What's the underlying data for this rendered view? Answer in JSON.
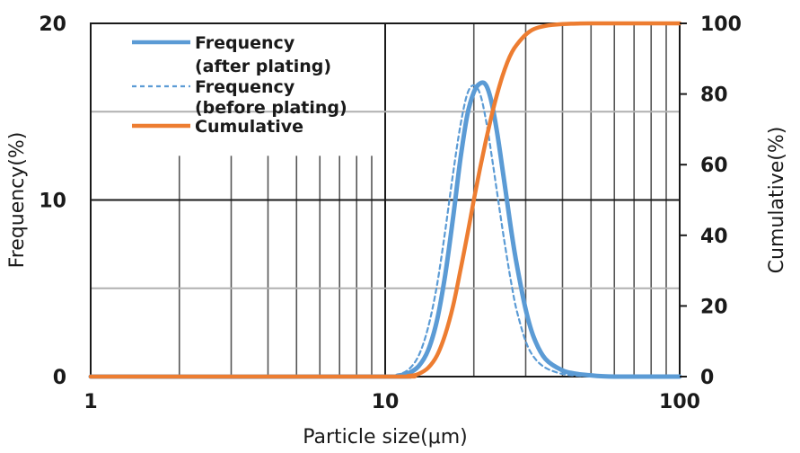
{
  "chart_data": {
    "type": "line",
    "xlabel": "Particle size(μm)",
    "ylabel_left": "Frequency(%)",
    "ylabel_right": "Cumulative(%)",
    "x_scale": "log",
    "xlim": [
      1,
      100
    ],
    "ylim_left": [
      0,
      20
    ],
    "ylim_right": [
      0,
      100
    ],
    "x_ticks": [
      {
        "value": 1,
        "label": "1"
      },
      {
        "value": 10,
        "label": "10"
      },
      {
        "value": 100,
        "label": "100"
      }
    ],
    "y_left_ticks": [
      {
        "value": 0,
        "label": "0"
      },
      {
        "value": 10,
        "label": "10"
      },
      {
        "value": 20,
        "label": "20"
      }
    ],
    "y_right_ticks": [
      {
        "value": 0,
        "label": "0"
      },
      {
        "value": 20,
        "label": "20"
      },
      {
        "value": 40,
        "label": "40"
      },
      {
        "value": 60,
        "label": "60"
      },
      {
        "value": 80,
        "label": "80"
      },
      {
        "value": 100,
        "label": "100"
      }
    ],
    "grid": true,
    "legend_position": "top-left",
    "series": [
      {
        "name_lines": [
          "Frequency",
          "(after plating)"
        ],
        "axis": "left",
        "style": "solid",
        "color": "#5b9bd5",
        "x": [
          1,
          10,
          11,
          12,
          13,
          14,
          15,
          16,
          17,
          18,
          19,
          20,
          21,
          22,
          23,
          24,
          25,
          26,
          27,
          28,
          30,
          32,
          35,
          40,
          45,
          50,
          55,
          60,
          70,
          80,
          100
        ],
        "y": [
          0,
          0,
          0.05,
          0.2,
          0.6,
          1.5,
          3.2,
          5.8,
          9.0,
          12.3,
          14.8,
          16.1,
          16.6,
          16.5,
          15.5,
          13.8,
          11.8,
          9.8,
          7.9,
          6.3,
          3.8,
          2.2,
          1.0,
          0.35,
          0.15,
          0.07,
          0.02,
          0,
          0,
          0,
          0
        ]
      },
      {
        "name_lines": [
          "Frequency",
          "(before plating)"
        ],
        "axis": "left",
        "style": "dashed",
        "color": "#5b9bd5",
        "x": [
          1,
          10,
          11,
          12,
          13,
          14,
          15,
          16,
          17,
          18,
          19,
          20,
          21,
          22,
          23,
          24,
          25,
          26,
          27,
          28,
          30,
          32,
          35,
          40,
          45,
          50,
          60,
          70,
          100
        ],
        "y": [
          0,
          0,
          0.1,
          0.4,
          1.2,
          2.8,
          5.2,
          8.3,
          11.5,
          14.2,
          16.0,
          16.5,
          16.0,
          14.5,
          12.5,
          10.4,
          8.4,
          6.6,
          5.0,
          3.7,
          2.0,
          1.1,
          0.5,
          0.15,
          0.05,
          0.02,
          0,
          0,
          0
        ]
      },
      {
        "name_lines": [
          "Cumulative"
        ],
        "axis": "right",
        "style": "solid",
        "color": "#ed7d31",
        "x": [
          1,
          10,
          12,
          13,
          14,
          15,
          16,
          17,
          18,
          19,
          20,
          21,
          22,
          23,
          24,
          25,
          26,
          27,
          28,
          30,
          32,
          35,
          40,
          45,
          50,
          60,
          100
        ],
        "y": [
          0,
          0,
          0.2,
          0.8,
          2.5,
          6,
          12,
          20,
          30,
          40,
          50,
          59,
          67,
          74,
          80,
          85,
          89,
          92,
          94,
          96.8,
          98.4,
          99.3,
          99.8,
          99.95,
          100,
          100,
          100
        ]
      }
    ]
  }
}
